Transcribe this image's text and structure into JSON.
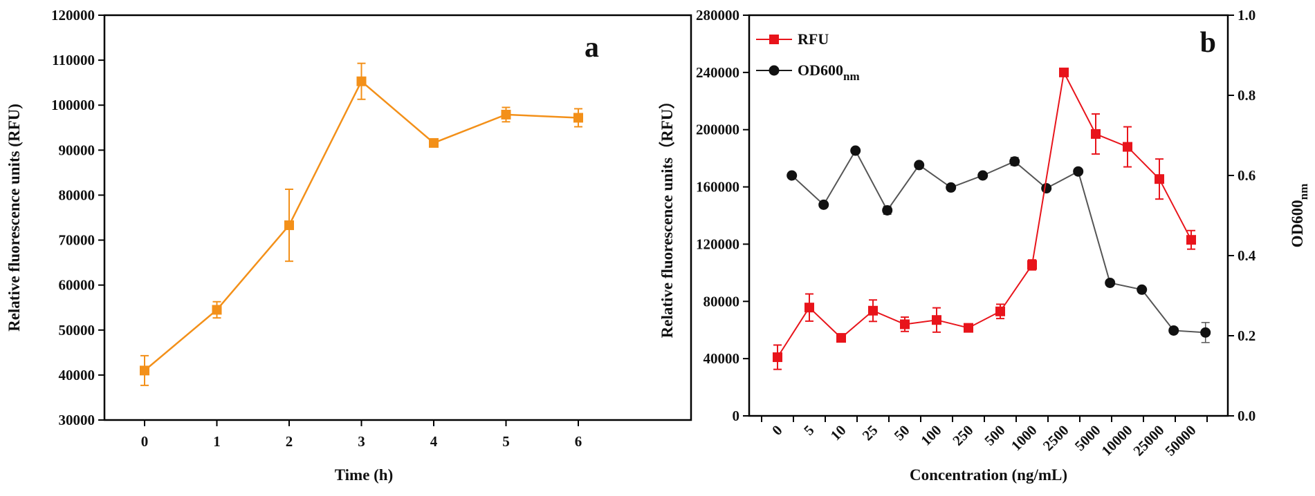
{
  "chart_data": [
    {
      "panel": "a",
      "type": "line",
      "title": "",
      "xlabel": "Time (h)",
      "ylabel": "Relative fluorescence units (RFU)",
      "x": [
        0,
        1,
        2,
        3,
        4,
        5,
        6
      ],
      "x_tick_labels": [
        "0",
        "1",
        "2",
        "3",
        "4",
        "5",
        "6"
      ],
      "y_tick_labels": [
        "30000",
        "40000",
        "50000",
        "60000",
        "70000",
        "80000",
        "90000",
        "100000",
        "110000",
        "120000"
      ],
      "ylim": [
        30000,
        120000
      ],
      "color": "#F39019",
      "series": [
        {
          "name": "RFU",
          "values": [
            41000,
            54500,
            73300,
            105300,
            91600,
            97900,
            97200
          ],
          "errors": [
            3300,
            1800,
            8000,
            4000,
            600,
            1600,
            2000
          ]
        }
      ]
    },
    {
      "panel": "b",
      "type": "line",
      "title": "",
      "xlabel": "Concentration (ng/mL)",
      "ylabel": "Relative fluorescence units（RFU）",
      "y2label": "OD600",
      "y2label_sub": "nm",
      "categories": [
        "0",
        "5",
        "10",
        "25",
        "50",
        "100",
        "250",
        "500",
        "1000",
        "2500",
        "5000",
        "10000",
        "25000",
        "50000"
      ],
      "y_tick_labels": [
        "0",
        "40000",
        "80000",
        "120000",
        "160000",
        "200000",
        "240000",
        "280000"
      ],
      "ylim": [
        0,
        280000
      ],
      "y2_tick_labels": [
        "0.0",
        "0.2",
        "0.4",
        "0.6",
        "0.8",
        "1.0"
      ],
      "y2lim": [
        0,
        1
      ],
      "legend_position": "top-left",
      "series": [
        {
          "name": "RFU",
          "name_sub": "",
          "axis": "left",
          "color": "#E8141B",
          "marker": "square",
          "values": [
            41000,
            75700,
            54500,
            73500,
            64000,
            67000,
            61500,
            73000,
            105500,
            240000,
            197000,
            188000,
            165500,
            123000
          ],
          "errors": [
            8500,
            9500,
            2000,
            7500,
            5000,
            8500,
            1500,
            5000,
            3500,
            1500,
            14000,
            14000,
            14000,
            6500
          ]
        },
        {
          "name": "OD600",
          "name_sub": "nm",
          "axis": "right",
          "color": "#1A1A1A",
          "marker": "circle",
          "x_positions": [
            0.45,
            1.45,
            2.45,
            3.45,
            4.45,
            5.45,
            6.45,
            7.45,
            8.45,
            9.45,
            10.45,
            11.45,
            12.45,
            13.45
          ],
          "values": [
            0.6,
            0.527,
            0.662,
            0.513,
            0.626,
            0.57,
            0.6,
            0.635,
            0.568,
            0.61,
            0.332,
            0.315,
            0.213,
            0.208
          ],
          "errors": [
            0,
            0,
            0,
            0.01,
            0,
            0,
            0,
            0.01,
            0,
            0,
            0,
            0,
            0,
            0.025
          ]
        }
      ]
    }
  ]
}
